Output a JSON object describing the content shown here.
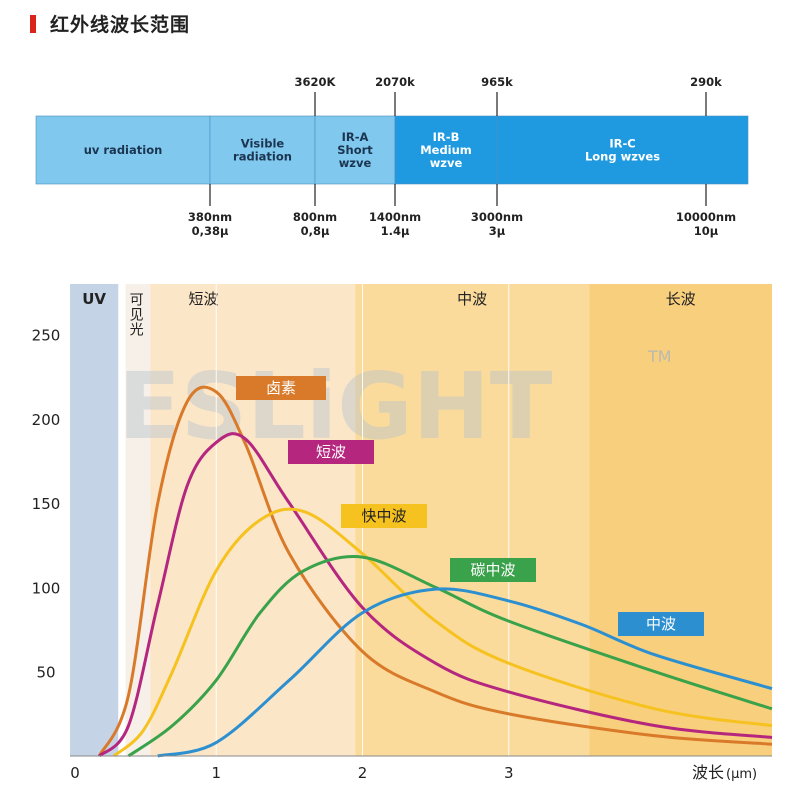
{
  "header": {
    "title": "红外线波长范围"
  },
  "spectrum": {
    "bands": [
      {
        "label1": "uv radiation",
        "label2": "",
        "label3": ""
      },
      {
        "label1": "Visible",
        "label2": "radiation",
        "label3": ""
      },
      {
        "label1": "IR-A",
        "label2": "Short",
        "label3": "wzve"
      },
      {
        "label1": "IR-B",
        "label2": "Medium",
        "label3": "wzve"
      },
      {
        "label1": "IR-C",
        "label2": "Long wzves",
        "label3": ""
      }
    ],
    "top_ticks": [
      "3620K",
      "2070k",
      "965k",
      "290k"
    ],
    "bottom_ticks": [
      {
        "nm": "380nm",
        "mu": "0,38μ"
      },
      {
        "nm": "800nm",
        "mu": "0,8μ"
      },
      {
        "nm": "1400nm",
        "mu": "1.4μ"
      },
      {
        "nm": "3000nm",
        "mu": "3μ"
      },
      {
        "nm": "10000nm",
        "mu": "10μ"
      }
    ],
    "colors": {
      "light": "#80c8ee",
      "dark": "#1f9ae0"
    }
  },
  "watermark": {
    "text": "ESLiGHT",
    "tm": "TM"
  },
  "chart_data": {
    "type": "line",
    "xlabel": "波长",
    "xunit": "(μm)",
    "ylabel": "",
    "xlim": [
      0,
      4.8
    ],
    "ylim": [
      0,
      280
    ],
    "x_ticks": [
      "0",
      "1",
      "2",
      "3"
    ],
    "y_ticks": [
      "50",
      "100",
      "150",
      "200",
      "250"
    ],
    "regions": [
      {
        "label": "UV",
        "from": 0,
        "to": 0.33,
        "color": "#c5d3e6"
      },
      {
        "label": "可见光",
        "from": 0.38,
        "to": 0.55,
        "color": "#f6f0e8"
      },
      {
        "label": "短波",
        "from": 0.55,
        "to": 1.95,
        "color": "#fbe6c8"
      },
      {
        "label": "中波",
        "from": 1.95,
        "to": 3.55,
        "color": "#fadb9c"
      },
      {
        "label": "长波",
        "from": 3.55,
        "to": 4.8,
        "color": "#f8cf7c"
      }
    ],
    "series": [
      {
        "name": "卤素",
        "color": "#d97a2a",
        "peak_x": 0.95,
        "peak_y": 218,
        "x": [
          0.2,
          0.4,
          0.6,
          0.8,
          1.0,
          1.2,
          1.5,
          2.0,
          2.5,
          3.0,
          4.0,
          4.8
        ],
        "y": [
          0,
          36,
          150,
          210,
          216,
          185,
          120,
          62,
          38,
          25,
          12,
          7
        ]
      },
      {
        "name": "短波",
        "color": "#b5267e",
        "peak_x": 1.15,
        "peak_y": 189,
        "x": [
          0.2,
          0.4,
          0.6,
          0.8,
          1.0,
          1.2,
          1.5,
          2.0,
          2.5,
          3.0,
          4.0,
          4.8
        ],
        "y": [
          0,
          18,
          90,
          160,
          186,
          188,
          150,
          88,
          55,
          38,
          18,
          11
        ]
      },
      {
        "name": "快中波",
        "color": "#f6c21f",
        "peak_x": 1.55,
        "peak_y": 146,
        "x": [
          0.3,
          0.5,
          0.7,
          1.0,
          1.3,
          1.6,
          2.0,
          2.5,
          3.0,
          4.0,
          4.8
        ],
        "y": [
          0,
          15,
          50,
          110,
          140,
          145,
          120,
          80,
          55,
          28,
          18
        ]
      },
      {
        "name": "碳中波",
        "color": "#3aa24a",
        "peak_x": 1.95,
        "peak_y": 118,
        "x": [
          0.4,
          0.7,
          1.0,
          1.3,
          1.6,
          2.0,
          2.5,
          3.0,
          4.0,
          4.8
        ],
        "y": [
          0,
          18,
          45,
          85,
          110,
          118,
          100,
          80,
          50,
          28
        ]
      },
      {
        "name": "中波",
        "color": "#2b8fd0",
        "peak_x": 2.45,
        "peak_y": 99,
        "x": [
          0.6,
          1.0,
          1.5,
          2.0,
          2.5,
          3.0,
          3.5,
          4.0,
          4.8
        ],
        "y": [
          0,
          8,
          45,
          85,
          99,
          92,
          78,
          60,
          40
        ]
      }
    ]
  }
}
